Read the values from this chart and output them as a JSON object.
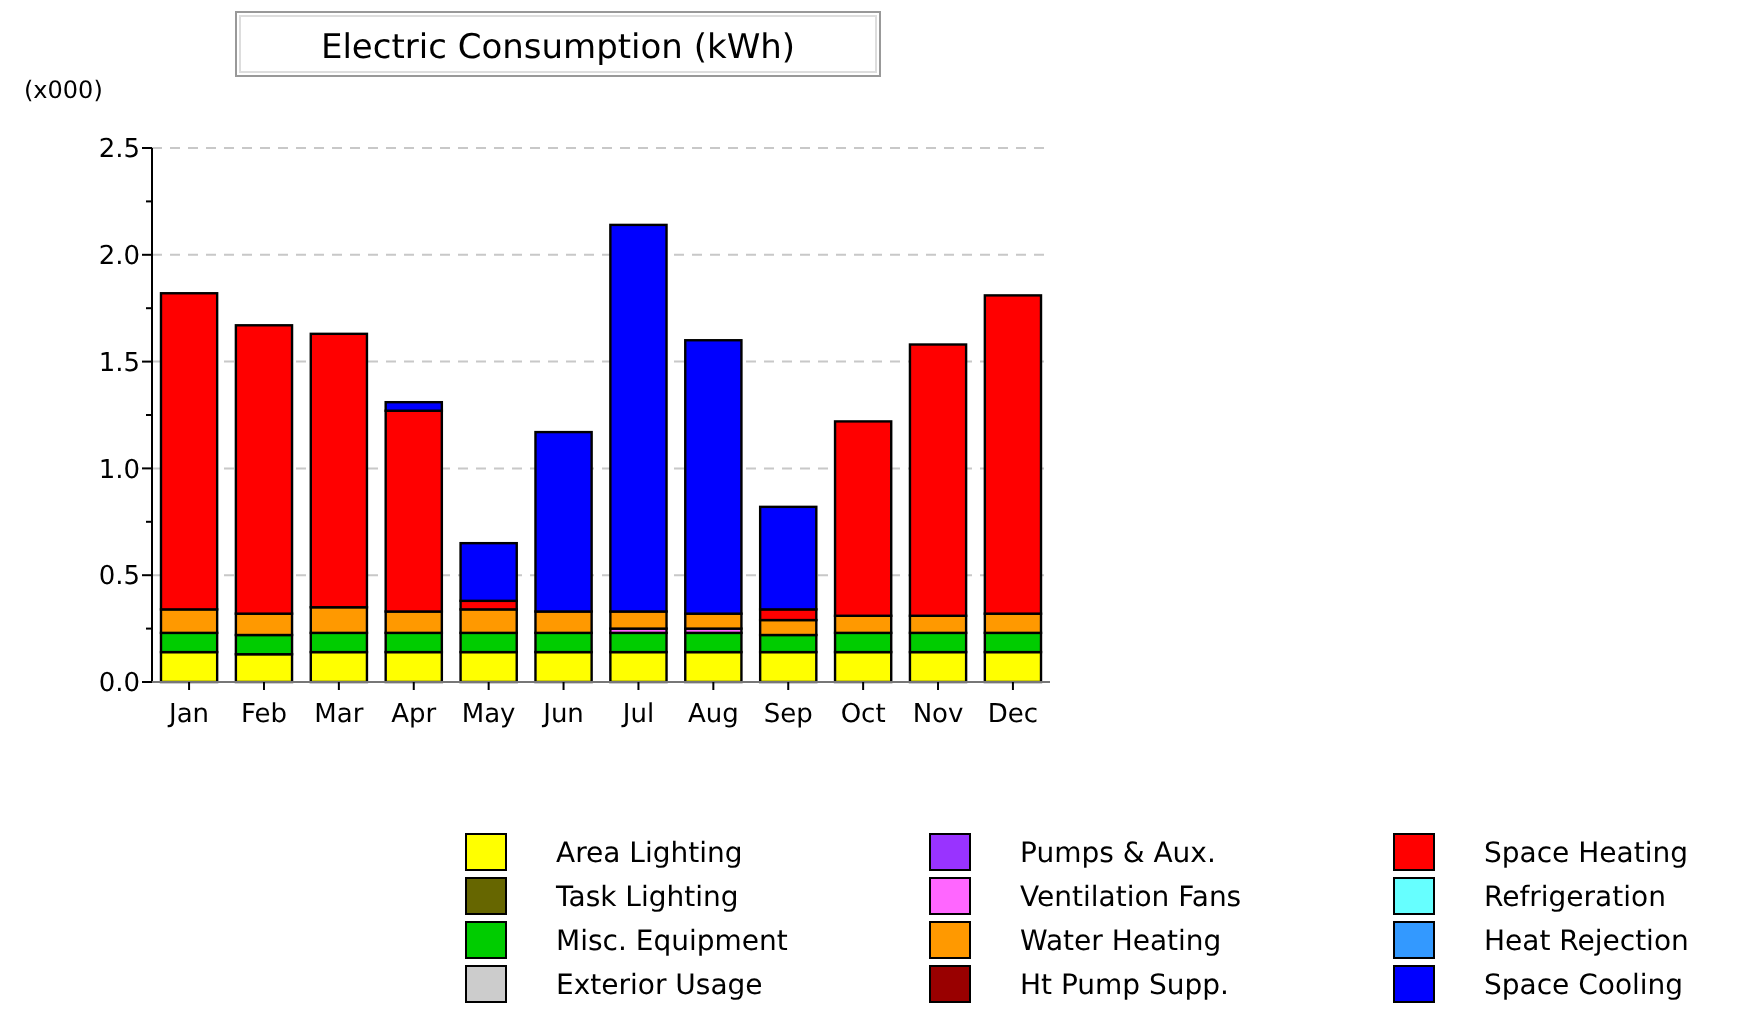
{
  "chart_data": {
    "type": "bar",
    "stacked": true,
    "title": "Electric Consumption (kWh)",
    "ylabel": "(x000)",
    "categories": [
      "Jan",
      "Feb",
      "Mar",
      "Apr",
      "May",
      "Jun",
      "Jul",
      "Aug",
      "Sep",
      "Oct",
      "Nov",
      "Dec"
    ],
    "series": [
      {
        "name": "Area Lighting",
        "color": "#ffff00",
        "values": [
          0.14,
          0.13,
          0.14,
          0.14,
          0.14,
          0.14,
          0.14,
          0.14,
          0.14,
          0.14,
          0.14,
          0.14
        ]
      },
      {
        "name": "Task Lighting",
        "color": "#666600",
        "values": [
          0,
          0,
          0,
          0,
          0,
          0,
          0,
          0,
          0,
          0,
          0,
          0
        ]
      },
      {
        "name": "Misc. Equipment",
        "color": "#00cc00",
        "values": [
          0.09,
          0.09,
          0.09,
          0.09,
          0.09,
          0.09,
          0.09,
          0.09,
          0.08,
          0.09,
          0.09,
          0.09
        ]
      },
      {
        "name": "Exterior Usage",
        "color": "#cccccc",
        "values": [
          0,
          0,
          0,
          0,
          0,
          0,
          0,
          0,
          0,
          0,
          0,
          0
        ]
      },
      {
        "name": "Pumps & Aux.",
        "color": "#9933ff",
        "values": [
          0,
          0,
          0,
          0,
          0,
          0,
          0,
          0,
          0,
          0,
          0,
          0
        ]
      },
      {
        "name": "Ventilation Fans",
        "color": "#ff66ff",
        "values": [
          0,
          0,
          0,
          0,
          0,
          0,
          0.02,
          0.02,
          0,
          0,
          0,
          0
        ]
      },
      {
        "name": "Water Heating",
        "color": "#ff9900",
        "values": [
          0.11,
          0.1,
          0.12,
          0.1,
          0.11,
          0.1,
          0.08,
          0.07,
          0.07,
          0.08,
          0.08,
          0.09
        ]
      },
      {
        "name": "Ht Pump Supp.",
        "color": "#990000",
        "values": [
          0,
          0,
          0,
          0,
          0,
          0,
          0,
          0,
          0,
          0,
          0,
          0
        ]
      },
      {
        "name": "Space Heating",
        "color": "#ff0000",
        "values": [
          1.48,
          1.35,
          1.28,
          0.94,
          0.04,
          0,
          0,
          0,
          0.05,
          0.91,
          1.27,
          1.49
        ]
      },
      {
        "name": "Refrigeration",
        "color": "#66ffff",
        "values": [
          0,
          0,
          0,
          0,
          0,
          0,
          0,
          0,
          0,
          0,
          0,
          0
        ]
      },
      {
        "name": "Heat Rejection",
        "color": "#3399ff",
        "values": [
          0,
          0,
          0,
          0,
          0,
          0,
          0,
          0,
          0,
          0,
          0,
          0
        ]
      },
      {
        "name": "Space Cooling",
        "color": "#0000ff",
        "values": [
          0,
          0,
          0,
          0.04,
          0.27,
          0.84,
          1.81,
          1.28,
          0.48,
          0,
          0,
          0
        ]
      }
    ],
    "ylim": [
      0,
      2.5
    ],
    "yticks": [
      {
        "value": 0,
        "label": "0.0"
      },
      {
        "value": 0.25,
        "label": null
      },
      {
        "value": 0.5,
        "label": "0.5"
      },
      {
        "value": 0.75,
        "label": null
      },
      {
        "value": 1,
        "label": "1.0"
      },
      {
        "value": 1.25,
        "label": null
      },
      {
        "value": 1.5,
        "label": "1.5"
      },
      {
        "value": 1.75,
        "label": null
      },
      {
        "value": 2,
        "label": "2.0"
      },
      {
        "value": 2.25,
        "label": null
      },
      {
        "value": 2.5,
        "label": "2.5"
      }
    ],
    "grid": "y",
    "legend": "bottom"
  }
}
